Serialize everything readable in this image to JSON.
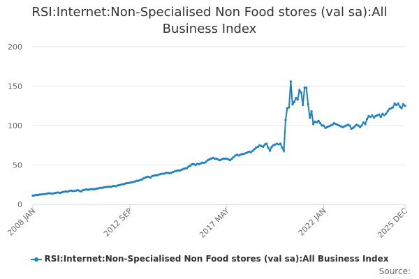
{
  "chart_data": {
    "type": "line",
    "title": "RSI:Internet:Non-Specialised Non Food stores (val sa):All Business Index",
    "source": "Source:",
    "categories": [
      "2008 JAN",
      null,
      null,
      null,
      null,
      null,
      null,
      null,
      null,
      null,
      null,
      null,
      null,
      null,
      null,
      null,
      null,
      null,
      null,
      null,
      null,
      null,
      null,
      null,
      null,
      null,
      null,
      null,
      null,
      null,
      null,
      null,
      null,
      null,
      null,
      null,
      null,
      null,
      null,
      null,
      null,
      null,
      null,
      null,
      null,
      null,
      null,
      null,
      null,
      null,
      null,
      null,
      null,
      null,
      null,
      null,
      "2012 SEP",
      null,
      null,
      null,
      null,
      null,
      null,
      null,
      null,
      null,
      null,
      null,
      null,
      null,
      null,
      null,
      null,
      null,
      null,
      null,
      null,
      null,
      null,
      null,
      null,
      null,
      null,
      null,
      null,
      null,
      null,
      null,
      null,
      null,
      null,
      null,
      null,
      null,
      null,
      null,
      null,
      null,
      null,
      null,
      null,
      null,
      null,
      null,
      null,
      null,
      null,
      null,
      null,
      null,
      null,
      null,
      "2017 MAY",
      null,
      null,
      null,
      null,
      null,
      null,
      null,
      null,
      null,
      null,
      null,
      null,
      null,
      null,
      null,
      null,
      null,
      null,
      null,
      null,
      null,
      null,
      null,
      null,
      null,
      null,
      null,
      null,
      null,
      null,
      null,
      null,
      null,
      null,
      null,
      null,
      null,
      null,
      null,
      null,
      null,
      null,
      null,
      null,
      null,
      null,
      null,
      null,
      null,
      null,
      null,
      null,
      null,
      null,
      null,
      "2022 JAN",
      null,
      null,
      null,
      null,
      null,
      null,
      null,
      null,
      null,
      null,
      null,
      null,
      null,
      null,
      null,
      null,
      null,
      null,
      null,
      null,
      null,
      null,
      null,
      null,
      null,
      null,
      null,
      null,
      null,
      null,
      null,
      null,
      null,
      null,
      null,
      null,
      null,
      null,
      null,
      null,
      null,
      null,
      null,
      null,
      null,
      null,
      "2025 DEC"
    ],
    "series": [
      {
        "name": "RSI:Internet:Non-Specialised Non Food stores (val sa):All Business Index",
        "color": "#1f80c0",
        "values": [
          11,
          11.5,
          12,
          12,
          12.5,
          12.5,
          13,
          13,
          13.5,
          14,
          14,
          13.5,
          14,
          14.5,
          15,
          15,
          14.5,
          15.5,
          16,
          16.5,
          16,
          17,
          17.5,
          17,
          17,
          17.5,
          18,
          17,
          16.5,
          18,
          18.5,
          19,
          18.5,
          19,
          19.5,
          19,
          19.5,
          20,
          20.5,
          21,
          21,
          21.5,
          22,
          22,
          22.5,
          22,
          23,
          23.5,
          23,
          24,
          24.5,
          25,
          25.5,
          26,
          27,
          27,
          27.5,
          28,
          28.5,
          29,
          30,
          30,
          31,
          31.5,
          33,
          34,
          35,
          35,
          34,
          36,
          36.5,
          37,
          37,
          38,
          38.5,
          39,
          39,
          40,
          40,
          39.5,
          40,
          41,
          42,
          42.5,
          43,
          43,
          44,
          45,
          45.5,
          46,
          48,
          49,
          51,
          51,
          50,
          51.5,
          51,
          52,
          53,
          52.5,
          54,
          56,
          57,
          58,
          59,
          58,
          58,
          57,
          56,
          57,
          58,
          58,
          58,
          57,
          56,
          58,
          60,
          62,
          63,
          62,
          63,
          64,
          64,
          65,
          66,
          67,
          66,
          68,
          70,
          72,
          73,
          75,
          74,
          73,
          76,
          77,
          72,
          68,
          73,
          75,
          76,
          77,
          76,
          77,
          72,
          68,
          107,
          122,
          123,
          156,
          127,
          130,
          135,
          133,
          145,
          142,
          126,
          148,
          148,
          127,
          110,
          118,
          102,
          105,
          104,
          106,
          103,
          100,
          100,
          97,
          98,
          99,
          100,
          101,
          103,
          102,
          101,
          100,
          99,
          98,
          99,
          100,
          101,
          100,
          96,
          97,
          99,
          101,
          100,
          98,
          100,
          104,
          102,
          108,
          112,
          111,
          113,
          110,
          112,
          113,
          114,
          111,
          115,
          113,
          115,
          118,
          121,
          122,
          123,
          128,
          126,
          128,
          124,
          122,
          127,
          125
        ]
      }
    ],
    "ylim": [
      0,
      200
    ],
    "yticks": [
      0,
      50,
      100,
      150,
      200
    ],
    "grid": true
  }
}
